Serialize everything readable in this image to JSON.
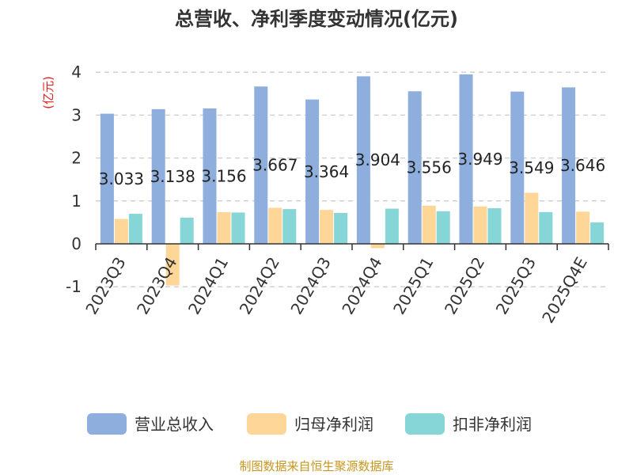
{
  "chart_data": {
    "type": "bar",
    "title": "总营收、净利季度变动情况(亿元)",
    "unit_label": "(亿元)",
    "categories": [
      "2023Q3",
      "2023Q4",
      "2024Q1",
      "2024Q2",
      "2024Q3",
      "2024Q4",
      "2025Q1",
      "2025Q2",
      "2025Q3",
      "2025Q4E"
    ],
    "series": [
      {
        "name": "营业总收入",
        "color": "#8eaedd",
        "values": [
          3.033,
          3.138,
          3.156,
          3.667,
          3.364,
          3.904,
          3.556,
          3.949,
          3.549,
          3.646
        ],
        "labels": [
          "3.033",
          "3.138",
          "3.156",
          "3.667",
          "3.364",
          "3.904",
          "3.556",
          "3.949",
          "3.549",
          "3.646"
        ]
      },
      {
        "name": "归母净利润",
        "color": "#fdd698",
        "values": [
          0.58,
          -0.97,
          0.74,
          0.84,
          0.79,
          -0.1,
          0.89,
          0.87,
          1.19,
          0.75
        ]
      },
      {
        "name": "扣非净利润",
        "color": "#87d6d7",
        "values": [
          0.7,
          0.61,
          0.73,
          0.81,
          0.72,
          0.82,
          0.76,
          0.83,
          0.74,
          0.5
        ]
      }
    ],
    "yticks": [
      "4",
      "3",
      "2",
      "1",
      "0",
      "-1"
    ],
    "ylim": [
      -1,
      4
    ],
    "grid": true,
    "legend_position": "bottom"
  },
  "source": "制图数据来自恒生聚源数据库"
}
